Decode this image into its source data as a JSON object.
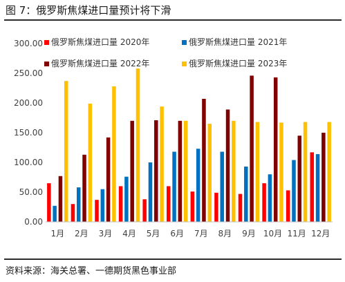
{
  "figure": {
    "title": "图 7：俄罗斯焦煤进口量预计将下滑",
    "source": "资料来源：海关总署、一德期货黑色事业部"
  },
  "chart_data": {
    "type": "bar",
    "title": "",
    "xlabel": "",
    "ylabel": "",
    "categories": [
      "1月",
      "2月",
      "3月",
      "4月",
      "5月",
      "6月",
      "7月",
      "8月",
      "9月",
      "10月",
      "11月",
      "12月"
    ],
    "ylim": [
      0,
      300
    ],
    "yticks": [
      "0.00",
      "50.00",
      "100.00",
      "150.00",
      "200.00",
      "250.00",
      "300.00"
    ],
    "grid": false,
    "legend_position": "top",
    "series": [
      {
        "name": "俄罗斯焦煤进口量 2020年",
        "color": "#ff0000",
        "values": [
          65,
          30,
          37,
          60,
          38,
          60,
          51,
          49,
          47,
          65,
          53,
          117
        ]
      },
      {
        "name": "俄罗斯焦煤进口量 2021年",
        "color": "#0070c0",
        "values": [
          27,
          58,
          55,
          76,
          100,
          118,
          123,
          118,
          93,
          80,
          104,
          114
        ]
      },
      {
        "name": "俄罗斯焦煤进口量 2022年",
        "color": "#800000",
        "values": [
          77,
          113,
          142,
          170,
          171,
          170,
          207,
          189,
          246,
          243,
          145,
          150
        ]
      },
      {
        "name": "俄罗斯焦煤进口量 2023年",
        "color": "#ffc000",
        "values": [
          237,
          199,
          228,
          258,
          194,
          170,
          165,
          170,
          168,
          167,
          168,
          168
        ]
      }
    ]
  }
}
